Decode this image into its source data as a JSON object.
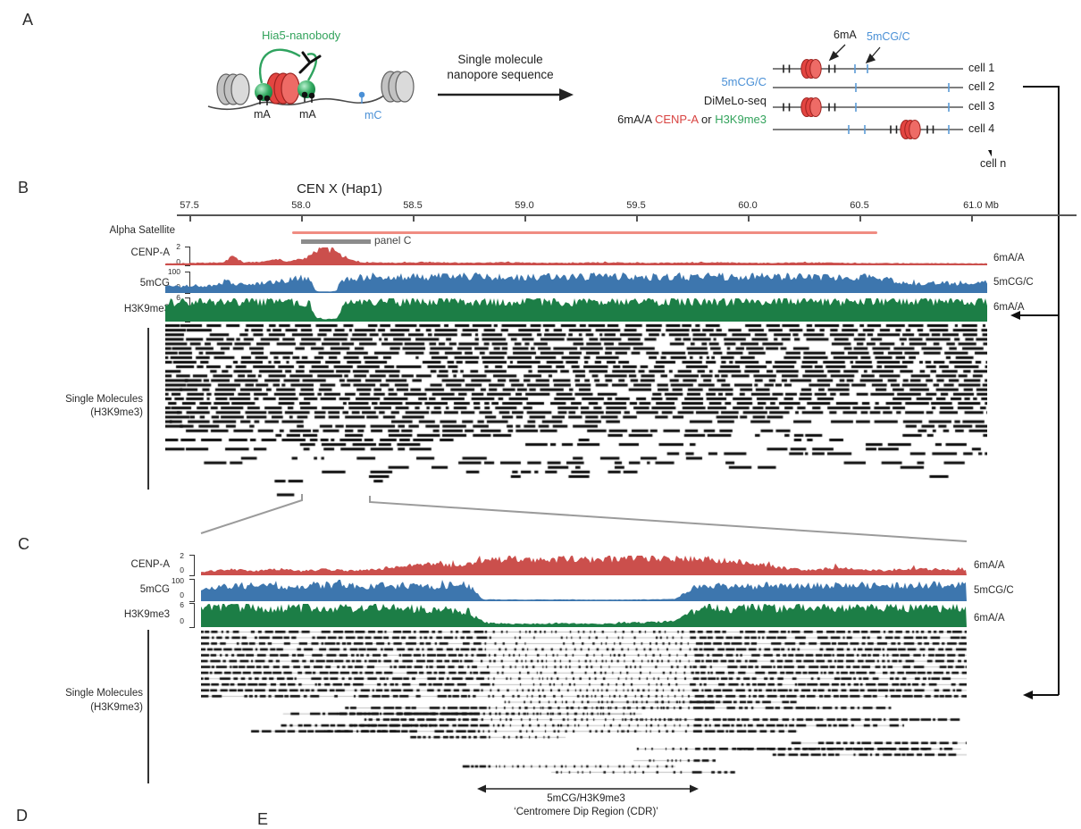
{
  "figure": {
    "panels": {
      "a": "A",
      "b": "B",
      "c": "C",
      "d": "D",
      "e": "E"
    },
    "colors": {
      "track_red": "#cb4f4c",
      "track_blue": "#3d76ae",
      "track_green": "#1c7e46",
      "alpha_satellite": "#f08c82",
      "gray_marker": "#8c8c8c",
      "text_red": "#d84341",
      "text_green": "#33a35c",
      "text_blue": "#4a90d6",
      "nucleosome_red": "#e34541",
      "nucleosome_gray": "#c2c2c2",
      "reads_black": "#0a0a0a"
    },
    "panel_a": {
      "nanobody_label": "Hia5-nanobody",
      "ma_label_1": "mA",
      "ma_label_2": "mA",
      "mc_label": "mC",
      "arrow_text_line1": "Single molecule",
      "arrow_text_line2": "nanopore sequence",
      "legend_line1": "5mCG/C",
      "legend_line2": "DiMeLo-seq",
      "legend_line3_prefix": "6mA/A ",
      "legend_line3_red": "CENP-A",
      "legend_line3_mid": " or ",
      "legend_line3_green": "H3K9me3",
      "tick_label_6ma": "6mA",
      "tick_label_5mcg": "5mCG/C",
      "cells": [
        "cell 1",
        "cell 2",
        "cell 3",
        "cell 4"
      ],
      "cell_n": "cell n"
    }
  },
  "chart_data": [
    {
      "panel": "B",
      "type": "area",
      "title": "CEN X (Hap1)",
      "x_unit": "Mb",
      "x_ticks": [
        "57.5",
        "58.0",
        "58.5",
        "59.0",
        "59.5",
        "60.0",
        "60.5",
        "61.0 Mb"
      ],
      "x_tick_values": [
        57.5,
        58.0,
        58.5,
        59.0,
        59.5,
        60.0,
        60.5,
        61.0
      ],
      "x_range_mb": [
        57.39,
        61.07
      ],
      "annotations": {
        "alpha_satellite": {
          "label": "Alpha Satellite",
          "start_mb": 57.96,
          "end_mb": 60.58
        },
        "panel_c_region": {
          "label": "panel C",
          "start_mb": 58.0,
          "end_mb": 58.31
        }
      },
      "tracks": [
        {
          "name": "CENP-A",
          "right_label": "6mA/A",
          "scale_top": "2",
          "scale_bottom": "0",
          "ylim": [
            0,
            2
          ],
          "color_key": "track_red",
          "profile": [
            [
              0,
              0.06
            ],
            [
              0.05,
              0.1
            ],
            [
              0.07,
              0.12
            ],
            [
              0.082,
              0.5
            ],
            [
              0.095,
              0.12
            ],
            [
              0.12,
              0.18
            ],
            [
              0.135,
              0.33
            ],
            [
              0.15,
              0.15
            ],
            [
              0.172,
              0.45
            ],
            [
              0.185,
              0.9
            ],
            [
              0.196,
              1.0
            ],
            [
              0.205,
              0.8
            ],
            [
              0.215,
              0.55
            ],
            [
              0.225,
              0.28
            ],
            [
              0.24,
              0.12
            ],
            [
              0.28,
              0.1
            ],
            [
              0.32,
              0.14
            ],
            [
              0.36,
              0.1
            ],
            [
              0.42,
              0.12
            ],
            [
              0.48,
              0.09
            ],
            [
              0.54,
              0.12
            ],
            [
              0.6,
              0.09
            ],
            [
              0.66,
              0.12
            ],
            [
              0.72,
              0.09
            ],
            [
              0.78,
              0.11
            ],
            [
              0.84,
              0.08
            ],
            [
              0.9,
              0.07
            ],
            [
              0.95,
              0.07
            ],
            [
              1,
              0.06
            ]
          ]
        },
        {
          "name": "5mCG",
          "right_label": "5mCG/C",
          "scale_top": "100",
          "scale_bottom": "0",
          "ylim": [
            0,
            100
          ],
          "color_key": "track_blue",
          "profile": [
            [
              0,
              0.28
            ],
            [
              0.04,
              0.33
            ],
            [
              0.06,
              0.3
            ],
            [
              0.075,
              0.62
            ],
            [
              0.085,
              0.38
            ],
            [
              0.1,
              0.42
            ],
            [
              0.13,
              0.48
            ],
            [
              0.155,
              0.68
            ],
            [
              0.17,
              0.72
            ],
            [
              0.178,
              0.6
            ],
            [
              0.183,
              0.06
            ],
            [
              0.19,
              0.03
            ],
            [
              0.2,
              0.03
            ],
            [
              0.208,
              0.05
            ],
            [
              0.213,
              0.55
            ],
            [
              0.22,
              0.75
            ],
            [
              0.3,
              0.78
            ],
            [
              0.4,
              0.76
            ],
            [
              0.5,
              0.8
            ],
            [
              0.6,
              0.77
            ],
            [
              0.7,
              0.8
            ],
            [
              0.8,
              0.78
            ],
            [
              0.85,
              0.76
            ],
            [
              0.875,
              0.7
            ],
            [
              0.89,
              0.5
            ],
            [
              0.91,
              0.42
            ],
            [
              0.94,
              0.5
            ],
            [
              0.97,
              0.38
            ],
            [
              1,
              0.5
            ]
          ]
        },
        {
          "name": "H3K9me3",
          "right_label": "6mA/A",
          "scale_top": "6",
          "scale_bottom": "0",
          "ylim": [
            0,
            6
          ],
          "color_key": "track_green",
          "profile": [
            [
              0,
              0.82
            ],
            [
              0.05,
              0.9
            ],
            [
              0.1,
              0.85
            ],
            [
              0.15,
              0.88
            ],
            [
              0.175,
              0.8
            ],
            [
              0.183,
              0.18
            ],
            [
              0.19,
              0.08
            ],
            [
              0.2,
              0.07
            ],
            [
              0.21,
              0.12
            ],
            [
              0.216,
              0.75
            ],
            [
              0.25,
              0.85
            ],
            [
              0.35,
              0.88
            ],
            [
              0.45,
              0.85
            ],
            [
              0.55,
              0.9
            ],
            [
              0.65,
              0.86
            ],
            [
              0.75,
              0.9
            ],
            [
              0.85,
              0.87
            ],
            [
              0.92,
              0.9
            ],
            [
              1,
              0.85
            ]
          ]
        }
      ],
      "single_molecules": {
        "label_line1": "Single Molecules",
        "label_line2": "(H3K9me3)",
        "rows": 38,
        "style": "dense-dashes",
        "seed": 11
      }
    },
    {
      "panel": "C",
      "type": "area",
      "x_range_mb": [
        58.0,
        58.31
      ],
      "tracks": [
        {
          "name": "CENP-A",
          "right_label": "6mA/A",
          "scale_top": "2",
          "scale_bottom": "0",
          "ylim": [
            0,
            2
          ],
          "color_key": "track_red",
          "profile": [
            [
              0,
              0.14
            ],
            [
              0.04,
              0.28
            ],
            [
              0.07,
              0.18
            ],
            [
              0.1,
              0.3
            ],
            [
              0.13,
              0.18
            ],
            [
              0.16,
              0.26
            ],
            [
              0.2,
              0.2
            ],
            [
              0.24,
              0.32
            ],
            [
              0.27,
              0.45
            ],
            [
              0.3,
              0.55
            ],
            [
              0.33,
              0.48
            ],
            [
              0.36,
              0.68
            ],
            [
              0.4,
              0.82
            ],
            [
              0.44,
              0.72
            ],
            [
              0.48,
              0.9
            ],
            [
              0.52,
              0.78
            ],
            [
              0.56,
              0.95
            ],
            [
              0.6,
              0.8
            ],
            [
              0.64,
              0.88
            ],
            [
              0.68,
              0.75
            ],
            [
              0.71,
              0.62
            ],
            [
              0.74,
              0.48
            ],
            [
              0.77,
              0.3
            ],
            [
              0.8,
              0.22
            ],
            [
              0.83,
              0.38
            ],
            [
              0.86,
              0.26
            ],
            [
              0.9,
              0.2
            ],
            [
              0.93,
              0.33
            ],
            [
              0.96,
              0.24
            ],
            [
              1,
              0.26
            ]
          ]
        },
        {
          "name": "5mCG",
          "right_label": "5mCG/C",
          "scale_top": "100",
          "scale_bottom": "0",
          "ylim": [
            0,
            100
          ],
          "color_key": "track_blue",
          "profile": [
            [
              0,
              0.6
            ],
            [
              0.05,
              0.72
            ],
            [
              0.1,
              0.66
            ],
            [
              0.15,
              0.75
            ],
            [
              0.2,
              0.68
            ],
            [
              0.25,
              0.73
            ],
            [
              0.3,
              0.7
            ],
            [
              0.33,
              0.73
            ],
            [
              0.35,
              0.68
            ],
            [
              0.358,
              0.5
            ],
            [
              0.368,
              0.05
            ],
            [
              0.42,
              0.03
            ],
            [
              0.47,
              0.04
            ],
            [
              0.52,
              0.03
            ],
            [
              0.57,
              0.04
            ],
            [
              0.62,
              0.06
            ],
            [
              0.632,
              0.35
            ],
            [
              0.642,
              0.62
            ],
            [
              0.68,
              0.72
            ],
            [
              0.72,
              0.68
            ],
            [
              0.76,
              0.74
            ],
            [
              0.8,
              0.7
            ],
            [
              0.85,
              0.74
            ],
            [
              0.9,
              0.7
            ],
            [
              0.95,
              0.75
            ],
            [
              1,
              0.72
            ]
          ]
        },
        {
          "name": "H3K9me3",
          "right_label": "6mA/A",
          "scale_top": "6",
          "scale_bottom": "0",
          "ylim": [
            0,
            6
          ],
          "color_key": "track_green",
          "profile": [
            [
              0,
              0.78
            ],
            [
              0.05,
              0.85
            ],
            [
              0.1,
              0.8
            ],
            [
              0.15,
              0.84
            ],
            [
              0.2,
              0.79
            ],
            [
              0.25,
              0.83
            ],
            [
              0.3,
              0.77
            ],
            [
              0.33,
              0.72
            ],
            [
              0.35,
              0.65
            ],
            [
              0.363,
              0.3
            ],
            [
              0.375,
              0.14
            ],
            [
              0.42,
              0.1
            ],
            [
              0.47,
              0.13
            ],
            [
              0.52,
              0.1
            ],
            [
              0.56,
              0.15
            ],
            [
              0.6,
              0.2
            ],
            [
              0.625,
              0.3
            ],
            [
              0.64,
              0.6
            ],
            [
              0.655,
              0.88
            ],
            [
              0.69,
              0.78
            ],
            [
              0.72,
              0.88
            ],
            [
              0.76,
              0.8
            ],
            [
              0.8,
              0.9
            ],
            [
              0.85,
              0.82
            ],
            [
              0.9,
              0.88
            ],
            [
              0.95,
              0.8
            ],
            [
              1,
              0.85
            ]
          ]
        }
      ],
      "single_molecules": {
        "label_line1": "Single Molecules",
        "label_line2": "(H3K9me3)",
        "rows": 25,
        "style": "dotted-reads",
        "seed": 23
      },
      "cdr": {
        "start_frac": 0.365,
        "end_frac": 0.638,
        "label_line1": "5mCG/H3K9me3",
        "label_line2": "‘Centromere Dip Region (CDR)’"
      }
    }
  ]
}
